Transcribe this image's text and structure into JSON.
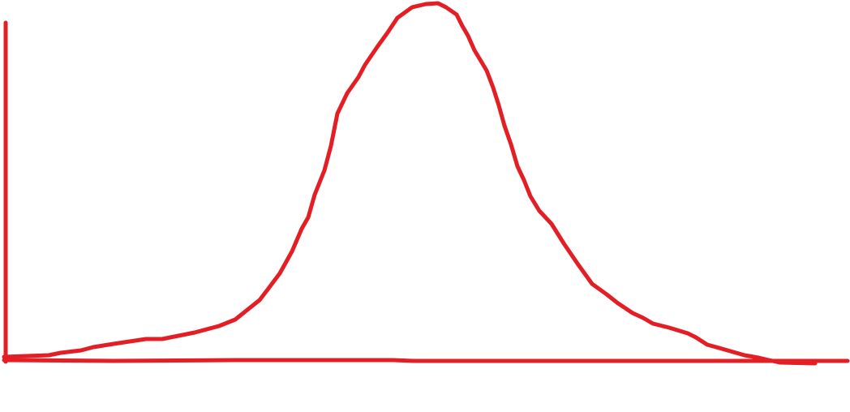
{
  "diagram": {
    "kind": "hand-drawn bell curve",
    "stroke_color": "#e31e24",
    "background_color": "#ffffff"
  }
}
